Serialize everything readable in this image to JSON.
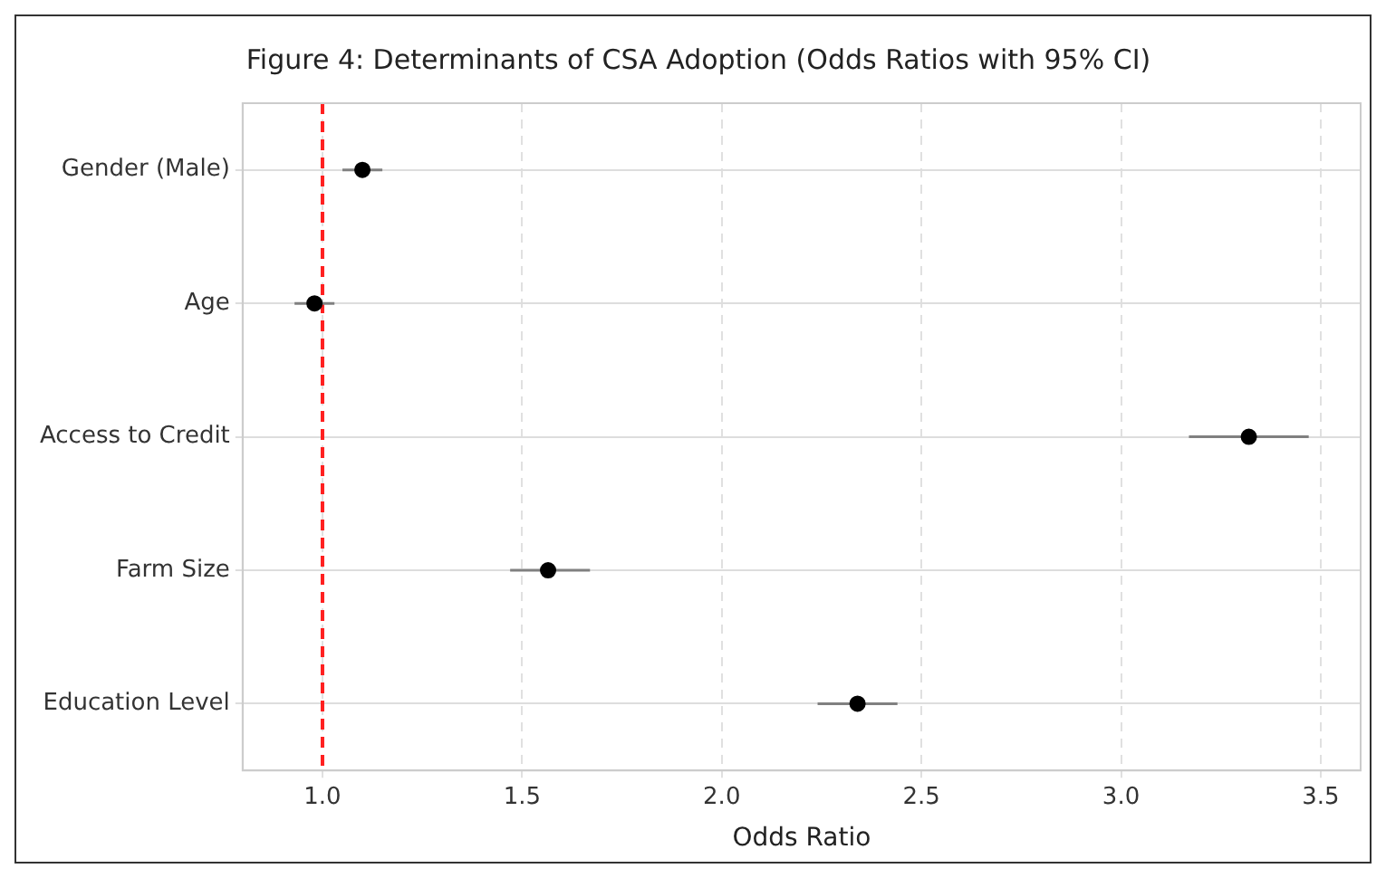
{
  "chart_data": {
    "type": "scatter",
    "title": "Figure 4: Determinants of CSA Adoption (Odds Ratios with 95% CI)",
    "xlabel": "Odds Ratio",
    "orientation": "horizontal",
    "categories": [
      "Gender (Male)",
      "Age",
      "Access to Credit",
      "Farm Size",
      "Education Level"
    ],
    "values": [
      1.1,
      0.98,
      3.32,
      1.565,
      2.34
    ],
    "errors": [
      [
        1.05,
        1.15
      ],
      [
        0.93,
        1.03
      ],
      [
        3.17,
        3.47
      ],
      [
        1.47,
        1.67
      ],
      [
        2.24,
        2.44
      ]
    ],
    "color": "#000000",
    "marker": "circle",
    "xlim": [
      0.8,
      3.6
    ],
    "xticks": [
      {
        "value": 1,
        "label": "1.0"
      },
      1.5,
      {
        "value": 2,
        "label": "2.0"
      },
      2.5,
      {
        "value": 3,
        "label": "3.0"
      },
      3.5
    ],
    "grid": true,
    "legend": false,
    "ref_lines": [
      {
        "axis": "x",
        "value": 1.0,
        "color": "#ff2020",
        "line_style": "dashed"
      }
    ]
  }
}
